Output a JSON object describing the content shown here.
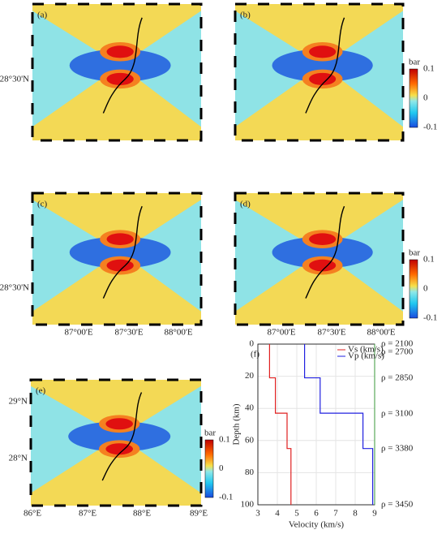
{
  "panels": [
    {
      "label": "(a)",
      "lat_labels": [
        "28°30'N"
      ]
    },
    {
      "label": "(b)",
      "colorbar": {
        "title": "bar",
        "ticks": [
          "0.1",
          "0",
          "-0.1"
        ]
      }
    },
    {
      "label": "(c)",
      "lat_labels": [
        "28°30'N"
      ],
      "lon_labels": [
        "87°00'E",
        "87°30'E",
        "88°00'E"
      ]
    },
    {
      "label": "(d)",
      "lon_labels": [
        "87°00'E",
        "87°30'E",
        "88°00'E"
      ],
      "colorbar": {
        "title": "bar",
        "ticks": [
          "0.1",
          "0",
          "-0.1"
        ]
      }
    },
    {
      "label": "(e)",
      "lat_labels": [
        "29°N",
        "28°N"
      ],
      "lon_labels": [
        "86°E",
        "87°E",
        "88°E",
        "89°E"
      ],
      "colorbar": {
        "title": "bar",
        "ticks": [
          "0.1",
          "0",
          "-0.1"
        ]
      }
    }
  ],
  "chart_data": {
    "type": "step",
    "label": "(f)",
    "x_label": "Velocity (km/s)",
    "y_label": "Depth (km)",
    "layer_depths": [
      0,
      21,
      43,
      65,
      100
    ],
    "series": [
      {
        "name": "Vs (km/s)",
        "color": "#e02020",
        "values": [
          3.6,
          3.9,
          4.5,
          4.7
        ]
      },
      {
        "name": "Vp (km/s)",
        "color": "#2020e0",
        "values": [
          5.4,
          6.2,
          8.4,
          8.9
        ]
      }
    ],
    "xlim": [
      3,
      9
    ],
    "xticks": [
      3,
      4,
      5,
      6,
      7,
      8,
      9
    ],
    "ylim": [
      0,
      100
    ],
    "yticks": [
      0,
      20,
      40,
      60,
      80,
      100
    ],
    "grid": true,
    "annotations": [
      "ρ = 2100",
      "ρ = 2700",
      "ρ = 2850",
      "ρ = 3100",
      "ρ = 3380",
      "ρ = 3450"
    ]
  }
}
